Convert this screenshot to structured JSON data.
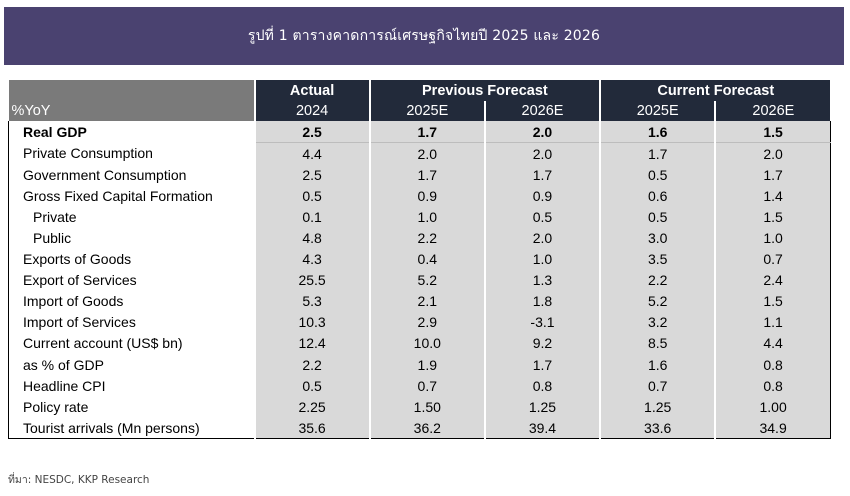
{
  "title": "รูปที่ 1 ตารางคาดการณ์เศรษฐกิจไทยปี 2025 และ 2026",
  "table": {
    "corner_label": "%YoY",
    "groups": [
      {
        "label": "Actual"
      },
      {
        "label": "Previous Forecast"
      },
      {
        "label": "Current Forecast"
      }
    ],
    "subheaders": [
      "2024",
      "2025E",
      "2026E",
      "2025E",
      "2026E"
    ],
    "rows": [
      {
        "label": "Real GDP",
        "values": [
          "2.5",
          "1.7",
          "2.0",
          "1.6",
          "1.5"
        ]
      },
      {
        "label": "Private Consumption",
        "values": [
          "4.4",
          "2.0",
          "2.0",
          "1.7",
          "2.0"
        ]
      },
      {
        "label": "Government Consumption",
        "values": [
          "2.5",
          "1.7",
          "1.7",
          "0.5",
          "1.7"
        ]
      },
      {
        "label": "Gross Fixed Capital Formation",
        "values": [
          "0.5",
          "0.9",
          "0.9",
          "0.6",
          "1.4"
        ]
      },
      {
        "label": "Private",
        "values": [
          "0.1",
          "1.0",
          "0.5",
          "0.5",
          "1.5"
        ]
      },
      {
        "label": "Public",
        "values": [
          "4.8",
          "2.2",
          "2.0",
          "3.0",
          "1.0"
        ]
      },
      {
        "label": "Exports of Goods",
        "values": [
          "4.3",
          "0.4",
          "1.0",
          "3.5",
          "0.7"
        ]
      },
      {
        "label": "Export of Services",
        "values": [
          "25.5",
          "5.2",
          "1.3",
          "2.2",
          "2.4"
        ]
      },
      {
        "label": "Import of Goods",
        "values": [
          "5.3",
          "2.1",
          "1.8",
          "5.2",
          "1.5"
        ]
      },
      {
        "label": "Import of Services",
        "values": [
          "10.3",
          "2.9",
          "-3.1",
          "3.2",
          "1.1"
        ]
      },
      {
        "label": "Current account (US$ bn)",
        "values": [
          "12.4",
          "10.0",
          "9.2",
          "8.5",
          "4.4"
        ]
      },
      {
        "label": "as % of GDP",
        "values": [
          "2.2",
          "1.9",
          "1.7",
          "1.6",
          "0.8"
        ]
      },
      {
        "label": "Headline CPI",
        "values": [
          "0.5",
          "0.7",
          "0.8",
          "0.7",
          "0.8"
        ]
      },
      {
        "label": "Policy rate",
        "values": [
          "2.25",
          "1.50",
          "1.25",
          "1.25",
          "1.00"
        ]
      },
      {
        "label": "Tourist arrivals (Mn persons)",
        "values": [
          "35.6",
          "36.2",
          "39.4",
          "33.6",
          "34.9"
        ]
      }
    ]
  },
  "source": "ที่มา: NESDC, KKP Research"
}
